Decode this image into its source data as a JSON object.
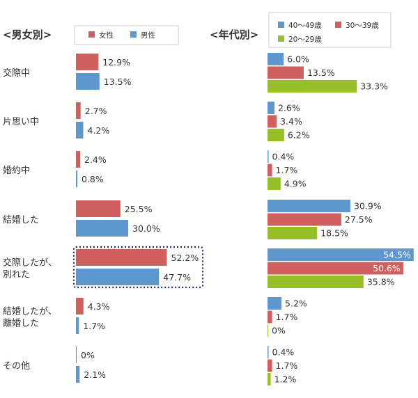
{
  "chart_data": [
    {
      "type": "bar",
      "title": "<男女別>",
      "categories": [
        "交際中",
        "片思い中",
        "婚約中",
        "結婚した",
        "交際したが、\n別れた",
        "結婚したが、\n離婚した",
        "その他"
      ],
      "unit": "%",
      "series": [
        {
          "name": "女性",
          "color": "#d0605f",
          "values": [
            12.9,
            2.7,
            2.4,
            25.5,
            52.2,
            4.3,
            0
          ]
        },
        {
          "name": "男性",
          "color": "#5f98cf",
          "values": [
            13.5,
            4.2,
            0.8,
            30.0,
            47.7,
            1.7,
            2.1
          ]
        }
      ],
      "highlight_category_index": 4,
      "highlight_style": "dotted navy outline"
    },
    {
      "type": "bar",
      "title": "<年代別>",
      "categories": [
        "交際中",
        "片思い中",
        "婚約中",
        "結婚した",
        "交際したが、\n別れた",
        "結婚したが、\n離婚した",
        "その他"
      ],
      "unit": "%",
      "series": [
        {
          "name": "40～49歳",
          "color": "#5f98cf",
          "values": [
            6.0,
            2.6,
            0.4,
            30.9,
            54.5,
            5.2,
            0.4
          ]
        },
        {
          "name": "30～39歳",
          "color": "#d0605f",
          "values": [
            13.5,
            3.4,
            1.7,
            27.5,
            50.6,
            1.7,
            1.7
          ]
        },
        {
          "name": "20～29歳",
          "color": "#97bf27",
          "values": [
            33.3,
            6.2,
            4.9,
            18.5,
            35.8,
            0,
            1.2
          ]
        }
      ]
    }
  ]
}
